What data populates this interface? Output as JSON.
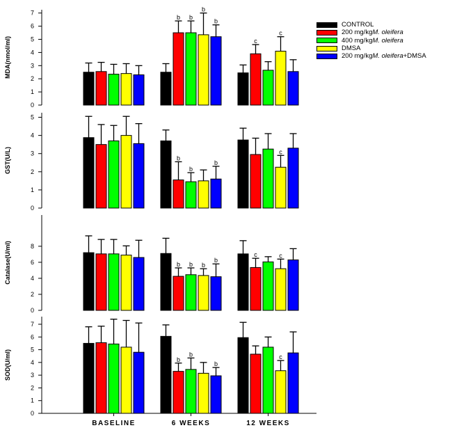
{
  "legend": [
    {
      "name": "CONTROL",
      "color": "#000000",
      "parts": [
        "CONTROL",
        "",
        ""
      ]
    },
    {
      "name": "200 mg/kg M. oleifera",
      "color": "#ff0000",
      "parts": [
        "200 mg/kg ",
        "M. oleifera",
        ""
      ]
    },
    {
      "name": "400 mg/kg M. oleifera",
      "color": "#00ff00",
      "parts": [
        "400 mg/kg ",
        "M. oleifera",
        ""
      ]
    },
    {
      "name": "DMSA",
      "color": "#ffff00",
      "parts": [
        "DMSA",
        "",
        ""
      ]
    },
    {
      "name": "200 mg/kg M. oleifera+DMSA",
      "color": "#0000ff",
      "parts": [
        "200 mg/kg ",
        "M. oleifera",
        "+DMSA"
      ]
    }
  ],
  "chart_data": [
    {
      "type": "bar",
      "ylabel": "MDA(nmol/ml)",
      "ylim": [
        0,
        7.25
      ],
      "yticks": [
        0,
        1,
        2,
        3,
        4,
        5,
        6,
        7
      ],
      "categories": [
        "BASELINE",
        "6 WEEKS",
        "12 WEEKS"
      ],
      "series": [
        {
          "name": "CONTROL",
          "values": [
            2.5,
            2.5,
            2.45
          ],
          "errors": [
            0.7,
            0.65,
            0.6
          ],
          "labels": [
            "",
            "",
            ""
          ]
        },
        {
          "name": "200 mg/kg M. oleifera",
          "values": [
            2.55,
            5.5,
            3.9
          ],
          "errors": [
            0.7,
            0.9,
            0.7
          ],
          "labels": [
            "",
            "b",
            "c"
          ]
        },
        {
          "name": "400 mg/kg M. oleifera",
          "values": [
            2.35,
            5.5,
            2.65
          ],
          "errors": [
            0.75,
            0.9,
            0.65
          ],
          "labels": [
            "",
            "b",
            ""
          ]
        },
        {
          "name": "DMSA",
          "values": [
            2.4,
            5.35,
            4.1
          ],
          "errors": [
            0.75,
            1.65,
            1.1
          ],
          "labels": [
            "",
            "b",
            "c"
          ]
        },
        {
          "name": "200 mg/kg M. oleifera+DMSA",
          "values": [
            2.3,
            5.2,
            2.55
          ],
          "errors": [
            0.7,
            0.9,
            0.9
          ],
          "labels": [
            "",
            "b",
            ""
          ]
        }
      ]
    },
    {
      "type": "bar",
      "ylabel": "GST(U/L)",
      "ylim": [
        0,
        5.25
      ],
      "yticks": [
        0,
        1,
        2,
        3,
        4,
        5
      ],
      "categories": [
        "BASELINE",
        "6 WEEKS",
        "12 WEEKS"
      ],
      "series": [
        {
          "name": "CONTROL",
          "values": [
            3.88,
            3.7,
            3.75
          ],
          "errors": [
            1.17,
            0.6,
            0.65
          ],
          "labels": [
            "",
            "",
            ""
          ]
        },
        {
          "name": "200 mg/kg M. oleifera",
          "values": [
            3.5,
            1.55,
            2.95
          ],
          "errors": [
            1.1,
            1.0,
            0.9
          ],
          "labels": [
            "",
            "b",
            ""
          ]
        },
        {
          "name": "400 mg/kg M. oleifera",
          "values": [
            3.7,
            1.45,
            3.25
          ],
          "errors": [
            0.85,
            0.5,
            0.85
          ],
          "labels": [
            "",
            "b",
            ""
          ]
        },
        {
          "name": "DMSA",
          "values": [
            4.0,
            1.5,
            2.25
          ],
          "errors": [
            1.05,
            0.6,
            0.65
          ],
          "labels": [
            "",
            "",
            "c"
          ]
        },
        {
          "name": "200 mg/kg M. oleifera+DMSA",
          "values": [
            3.55,
            1.6,
            3.3
          ],
          "errors": [
            1.1,
            0.7,
            0.8
          ],
          "labels": [
            "",
            "b",
            ""
          ]
        }
      ]
    },
    {
      "type": "bar",
      "ylabel": "Catalase(U/ml)",
      "ylim": [
        0,
        11.9
      ],
      "yticks": [
        0,
        2,
        4,
        6,
        8
      ],
      "categories": [
        "BASELINE",
        "6 WEEKS",
        "12 WEEKS"
      ],
      "series": [
        {
          "name": "CONTROL",
          "values": [
            7.2,
            7.1,
            7.05
          ],
          "errors": [
            2.1,
            1.9,
            1.65
          ],
          "labels": [
            "",
            "",
            ""
          ]
        },
        {
          "name": "200 mg/kg M. oleifera",
          "values": [
            7.05,
            4.25,
            5.35
          ],
          "errors": [
            1.8,
            1.05,
            1.15
          ],
          "labels": [
            "",
            "b",
            "c"
          ]
        },
        {
          "name": "400 mg/kg M. oleifera",
          "values": [
            7.05,
            4.45,
            6.05
          ],
          "errors": [
            1.8,
            0.85,
            0.65
          ],
          "labels": [
            "",
            "b",
            ""
          ]
        },
        {
          "name": "DMSA",
          "values": [
            6.9,
            4.35,
            5.2
          ],
          "errors": [
            1.15,
            0.85,
            1.2
          ],
          "labels": [
            "",
            "b",
            "c"
          ]
        },
        {
          "name": "200 mg/kg M. oleifera+DMSA",
          "values": [
            6.6,
            4.2,
            6.3
          ],
          "errors": [
            2.15,
            1.6,
            1.4
          ],
          "labels": [
            "",
            "b",
            ""
          ]
        }
      ]
    },
    {
      "type": "bar",
      "ylabel": "SOD(U/ml)",
      "ylim": [
        0,
        7.6
      ],
      "yticks": [
        0,
        1,
        2,
        3,
        4,
        5,
        6,
        7
      ],
      "categories": [
        "BASELINE",
        "6 WEEKS",
        "12 WEEKS"
      ],
      "series": [
        {
          "name": "CONTROL",
          "values": [
            5.5,
            6.05,
            5.95
          ],
          "errors": [
            1.3,
            0.9,
            1.2
          ],
          "labels": [
            "",
            "",
            ""
          ]
        },
        {
          "name": "200 mg/kg M. oleifera",
          "values": [
            5.55,
            3.3,
            4.65
          ],
          "errors": [
            1.3,
            0.65,
            0.65
          ],
          "labels": [
            "",
            "b",
            ""
          ]
        },
        {
          "name": "400 mg/kg M. oleifera",
          "values": [
            5.45,
            3.45,
            5.2
          ],
          "errors": [
            1.95,
            0.9,
            0.8
          ],
          "labels": [
            "",
            "b",
            ""
          ]
        },
        {
          "name": "DMSA",
          "values": [
            5.2,
            3.15,
            3.35
          ],
          "errors": [
            2.1,
            0.85,
            0.8
          ],
          "labels": [
            "",
            "",
            "c"
          ]
        },
        {
          "name": "200 mg/kg M. oleifera+DMSA",
          "values": [
            4.8,
            2.95,
            4.75
          ],
          "errors": [
            2.3,
            0.65,
            1.65
          ],
          "labels": [
            "",
            "b",
            ""
          ]
        }
      ]
    }
  ]
}
